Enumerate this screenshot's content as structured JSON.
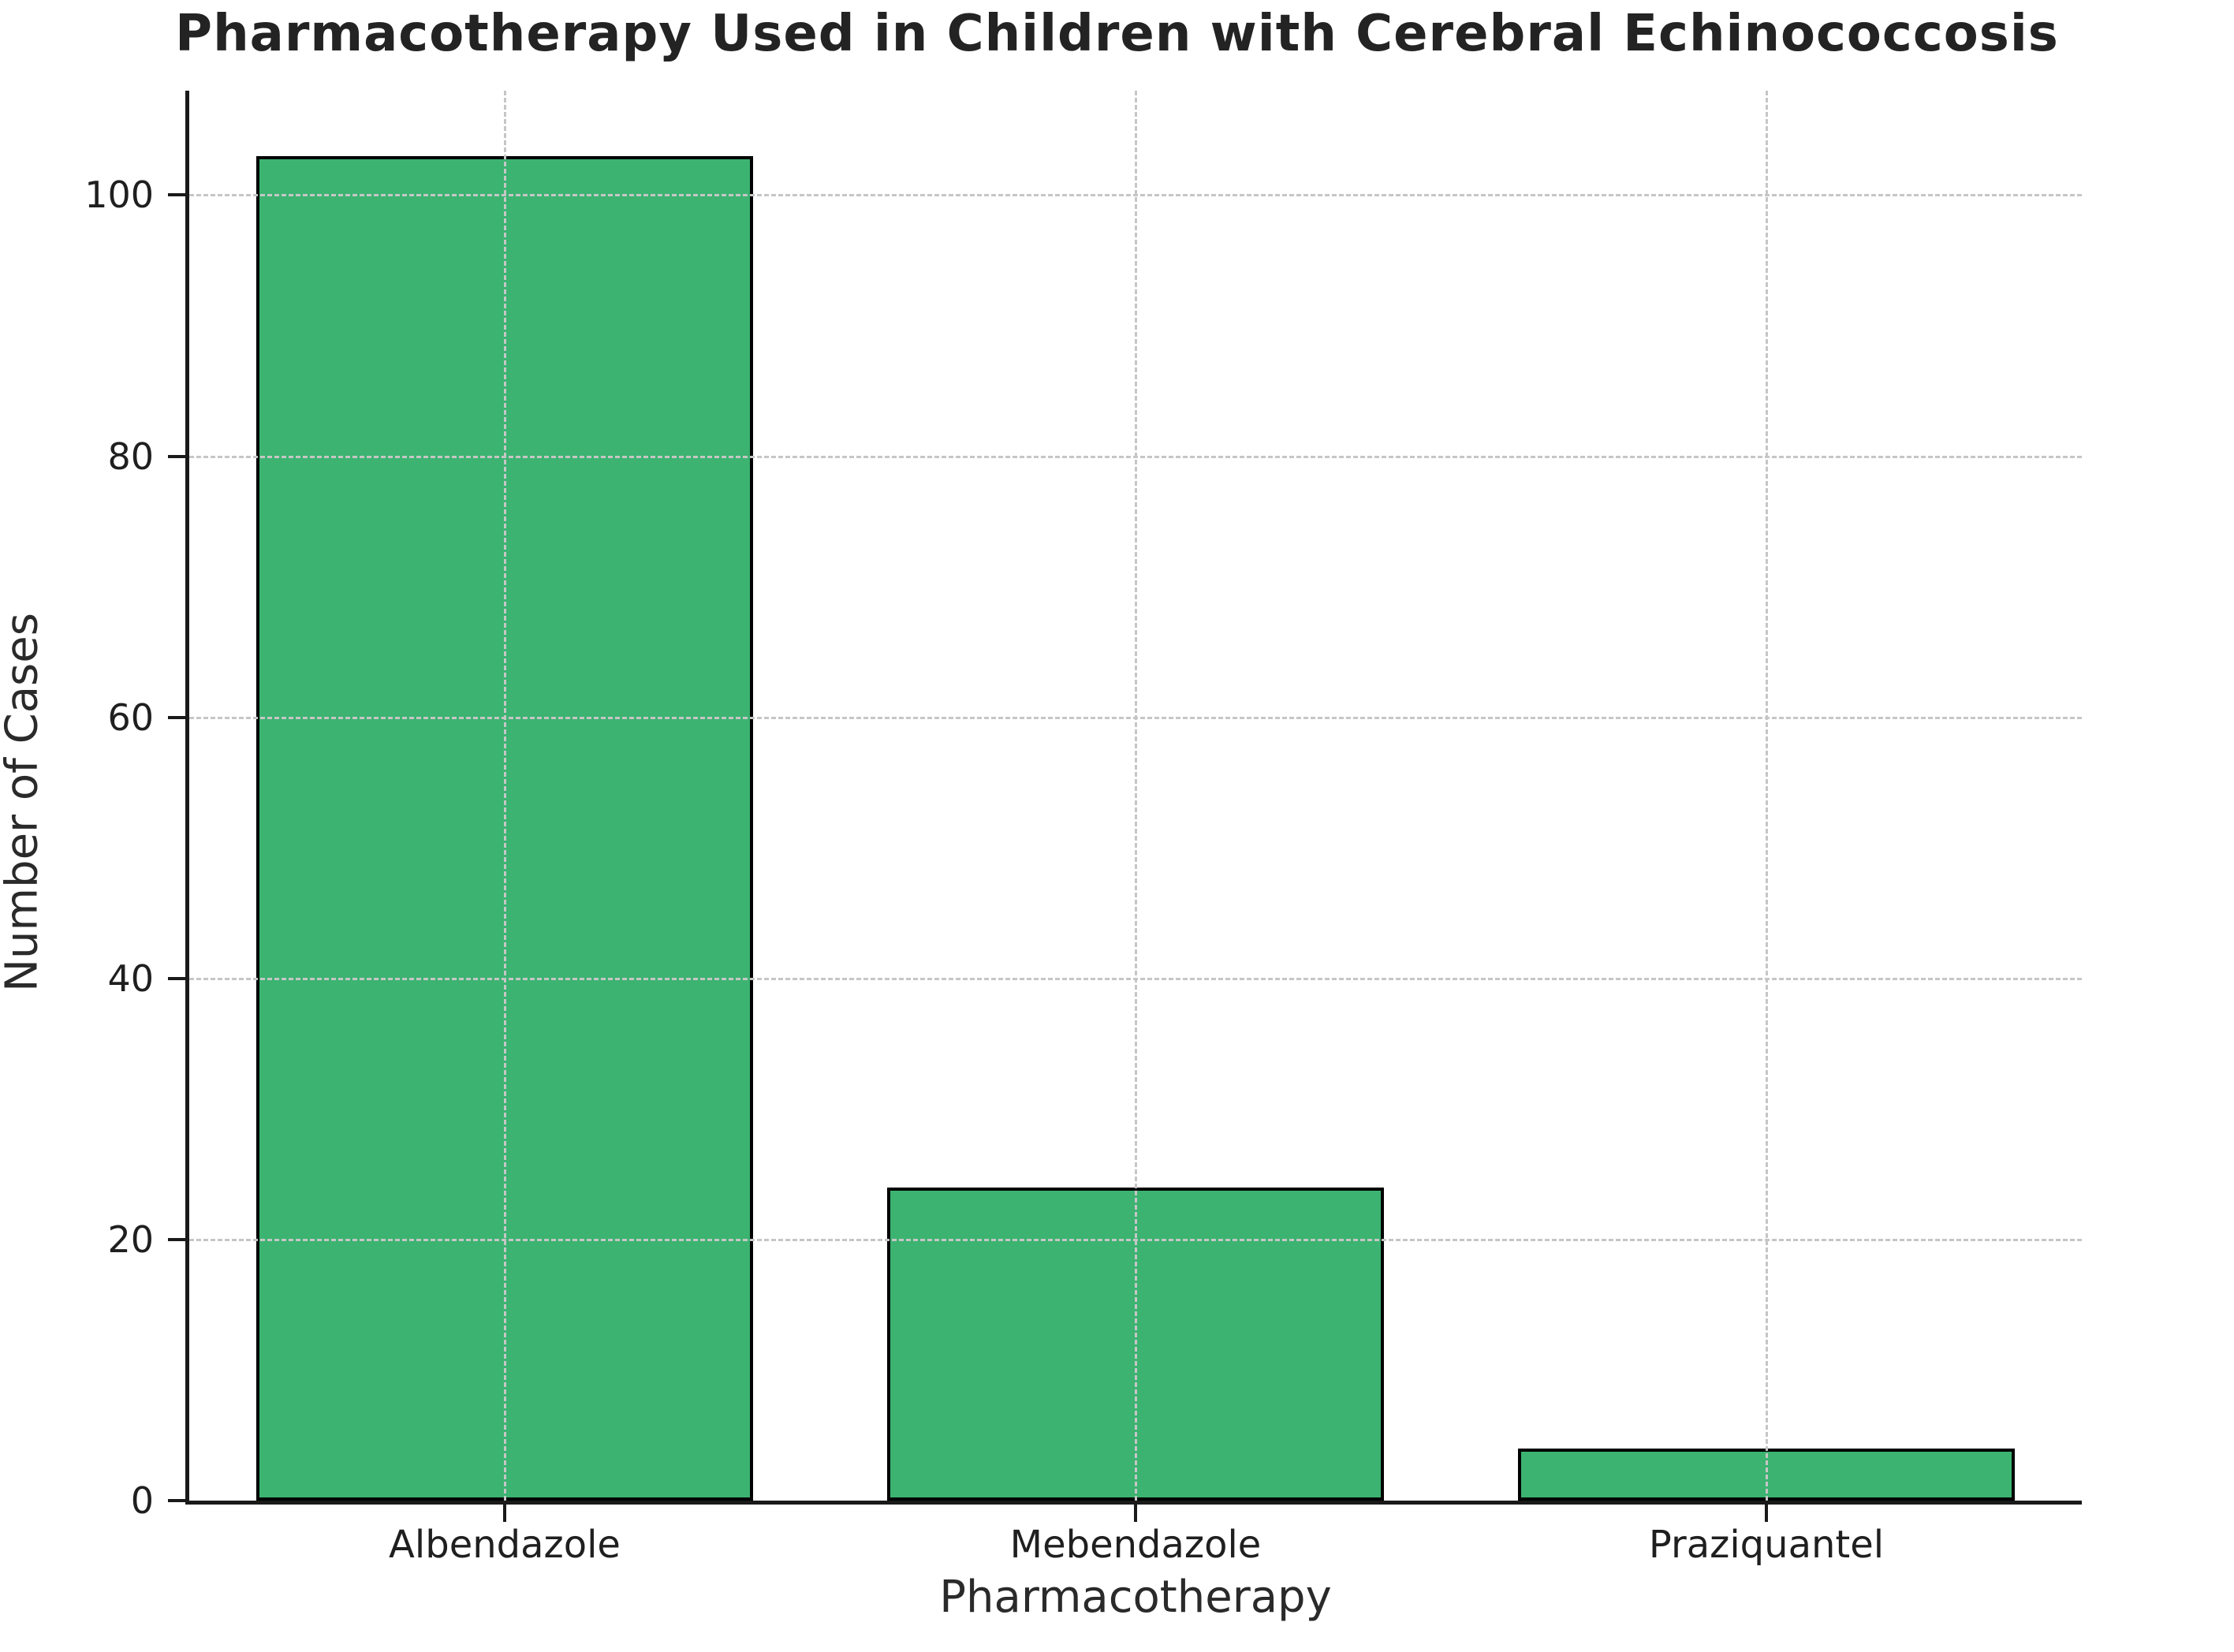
{
  "chart_data": {
    "type": "bar",
    "title": "Pharmacotherapy Used in Children with Cerebral Echinococcosis",
    "xlabel": "Pharmacotherapy",
    "ylabel": "Number of Cases",
    "categories": [
      "Albendazole",
      "Mebendazole",
      "Praziquantel"
    ],
    "values": [
      103,
      24,
      4
    ],
    "yticks": [
      0,
      20,
      40,
      60,
      80,
      100
    ],
    "ylim": [
      0,
      108
    ],
    "grid": "both-dashed",
    "legend": "none",
    "bar_color": "#3cb371",
    "bar_edge_color": "#000000",
    "grid_color": "#c6c6c6",
    "spine_color": "#1a1a1a",
    "background_color": "#ffffff"
  }
}
